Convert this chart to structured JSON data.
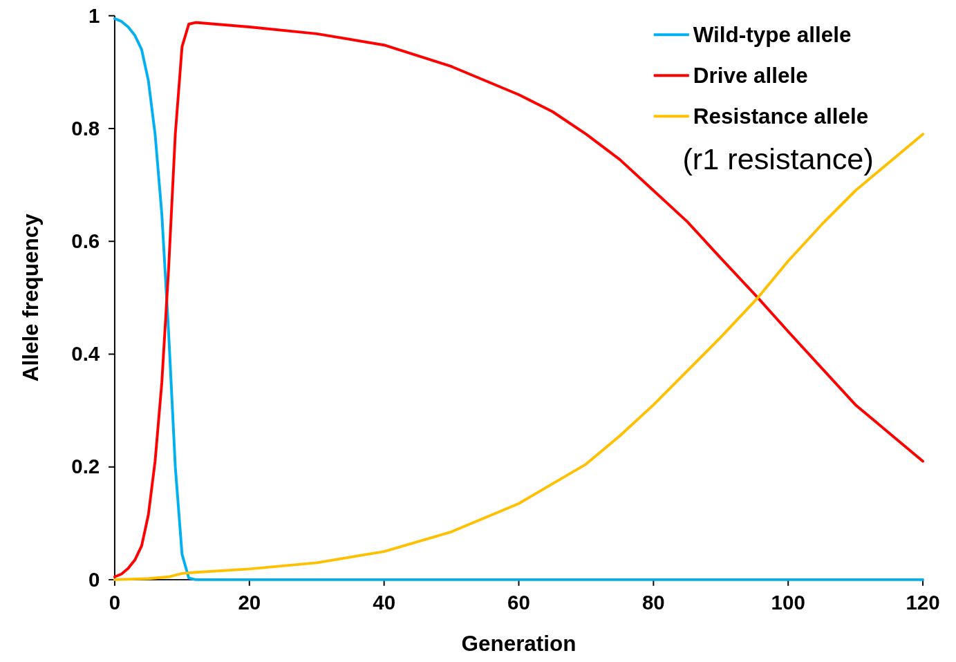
{
  "chart_data": {
    "type": "line",
    "xlabel": "Generation",
    "ylabel": "Allele frequency",
    "xlim": [
      0,
      120
    ],
    "ylim": [
      0,
      1
    ],
    "xticks": [
      0,
      20,
      40,
      60,
      80,
      100,
      120
    ],
    "yticks": [
      0,
      0.2,
      0.4,
      0.6,
      0.8,
      1
    ],
    "legend": "top right",
    "marker": "none",
    "line_style": "solid",
    "grid": false,
    "annotations": [
      "(r1 resistance)"
    ],
    "series": [
      {
        "name": "Wild-type allele",
        "color": "#00b0f0",
        "x": [
          0,
          1,
          2,
          3,
          4,
          5,
          6,
          7,
          8,
          9,
          10,
          11,
          12,
          20,
          40,
          60,
          80,
          100,
          120
        ],
        "values": [
          0.995,
          0.99,
          0.98,
          0.965,
          0.94,
          0.885,
          0.79,
          0.648,
          0.44,
          0.2,
          0.045,
          0.003,
          0,
          0,
          0,
          0,
          0,
          0,
          0
        ]
      },
      {
        "name": "Drive allele",
        "color": "#ff0000",
        "x": [
          0,
          1,
          2,
          3,
          4,
          5,
          6,
          7,
          8,
          9,
          10,
          11,
          12,
          20,
          30,
          40,
          50,
          60,
          65,
          70,
          75,
          80,
          85,
          90,
          95.5,
          100,
          105,
          110,
          115,
          120
        ],
        "values": [
          0.005,
          0.01,
          0.02,
          0.035,
          0.06,
          0.115,
          0.21,
          0.35,
          0.55,
          0.79,
          0.945,
          0.985,
          0.988,
          0.98,
          0.968,
          0.948,
          0.91,
          0.86,
          0.83,
          0.79,
          0.745,
          0.69,
          0.635,
          0.57,
          0.5,
          0.44,
          0.375,
          0.31,
          0.26,
          0.21
        ]
      },
      {
        "name": "Resistance allele",
        "color": "#ffc000",
        "x": [
          0,
          5,
          8,
          10,
          12,
          20,
          30,
          40,
          50,
          60,
          65,
          70,
          75,
          80,
          85,
          90,
          95.5,
          100,
          105,
          110,
          115,
          120
        ],
        "values": [
          0,
          0.002,
          0.005,
          0.011,
          0.013,
          0.019,
          0.03,
          0.05,
          0.085,
          0.135,
          0.17,
          0.205,
          0.255,
          0.31,
          0.37,
          0.43,
          0.5,
          0.565,
          0.63,
          0.69,
          0.74,
          0.79
        ]
      }
    ]
  }
}
